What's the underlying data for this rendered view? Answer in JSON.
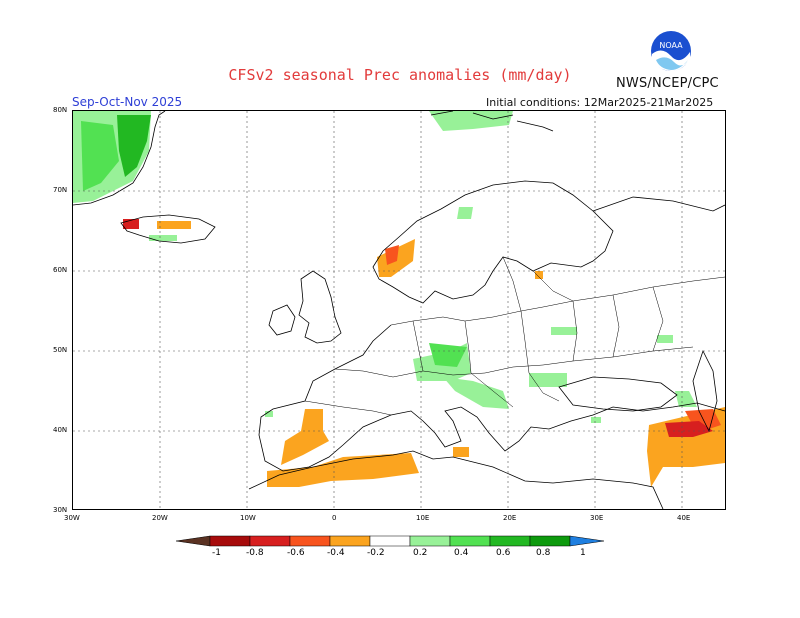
{
  "header": {
    "title": "CFSv2 seasonal Prec anomalies (mm/day)",
    "agency": "NWS/NCEP/CPC",
    "season": "Sep-Oct-Nov 2025",
    "initial_conditions": "Initial conditions: 12Mar2025-21Mar2025",
    "logo_text": "NOAA"
  },
  "map": {
    "lon_range": [
      -30,
      45
    ],
    "lat_range": [
      30,
      80
    ],
    "lat_labels": [
      "80N",
      "70N",
      "60N",
      "50N",
      "40N",
      "30N"
    ],
    "lon_labels": [
      "30W",
      "20W",
      "10W",
      "0",
      "10E",
      "20E",
      "30E",
      "40E"
    ],
    "colors": {
      "green_light": "#98f198",
      "green": "#52e152",
      "green_dark": "#22b822",
      "orange": "#fba41f",
      "orange_red": "#f8541e",
      "red": "#d71f1f",
      "dark_red": "#a70b0b"
    }
  },
  "colorbar": {
    "labels": [
      "-1",
      "-0.8",
      "-0.6",
      "-0.4",
      "-0.2",
      "0.2",
      "0.4",
      "0.6",
      "0.8",
      "1"
    ],
    "colors": [
      "#5a3222",
      "#a70b0b",
      "#d71f1f",
      "#f8541e",
      "#fba41f",
      "#ffffff",
      "#98f198",
      "#52e152",
      "#22b822",
      "#0d9a0d",
      "#1f7fe0"
    ]
  }
}
